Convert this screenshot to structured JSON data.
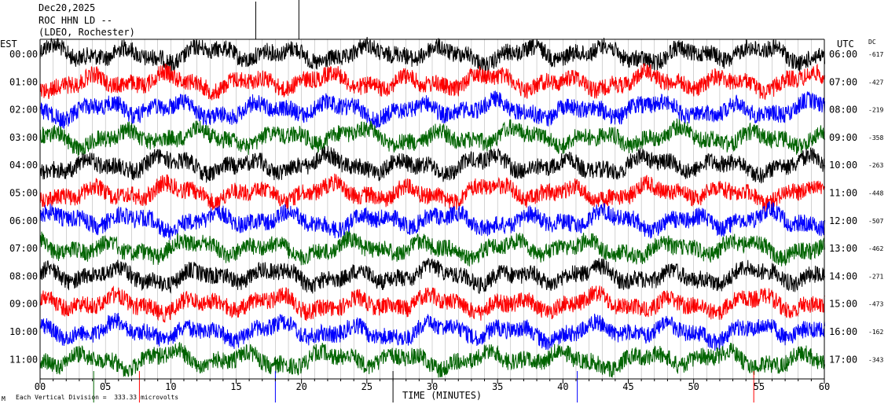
{
  "header": {
    "date": "Dec20,2025",
    "station": "ROC HHN LD --",
    "location": "(LDEO, Rochester)"
  },
  "left_axis_label": "EST",
  "right_axis_label": "UTC",
  "dc_label": "DC",
  "footer": {
    "scale_note": "Each Vertical Division =  333.33 microvolts",
    "corner_mark": "M"
  },
  "chart_data": {
    "type": "line",
    "xlabel": "TIME (MINUTES)",
    "xlim": [
      0,
      60
    ],
    "x_ticks": [
      "00",
      "05",
      "10",
      "15",
      "20",
      "25",
      "30",
      "35",
      "40",
      "45",
      "50",
      "55",
      "60"
    ],
    "rows": [
      {
        "est": "00:00",
        "utc": "06:00",
        "dc": "-617",
        "color": "#000000"
      },
      {
        "est": "01:00",
        "utc": "07:00",
        "dc": "-427",
        "color": "#ff0000"
      },
      {
        "est": "02:00",
        "utc": "08:00",
        "dc": "-219",
        "color": "#0000ff"
      },
      {
        "est": "03:00",
        "utc": "09:00",
        "dc": "-358",
        "color": "#006400"
      },
      {
        "est": "04:00",
        "utc": "10:00",
        "dc": "-263",
        "color": "#000000"
      },
      {
        "est": "05:00",
        "utc": "11:00",
        "dc": "-448",
        "color": "#ff0000"
      },
      {
        "est": "06:00",
        "utc": "12:00",
        "dc": "-507",
        "color": "#0000ff"
      },
      {
        "est": "07:00",
        "utc": "13:00",
        "dc": "-462",
        "color": "#006400"
      },
      {
        "est": "08:00",
        "utc": "14:00",
        "dc": "-271",
        "color": "#000000"
      },
      {
        "est": "09:00",
        "utc": "15:00",
        "dc": "-473",
        "color": "#ff0000"
      },
      {
        "est": "10:00",
        "utc": "16:00",
        "dc": "-162",
        "color": "#0000ff"
      },
      {
        "est": "11:00",
        "utc": "17:00",
        "dc": "-343",
        "color": "#006400"
      }
    ]
  }
}
